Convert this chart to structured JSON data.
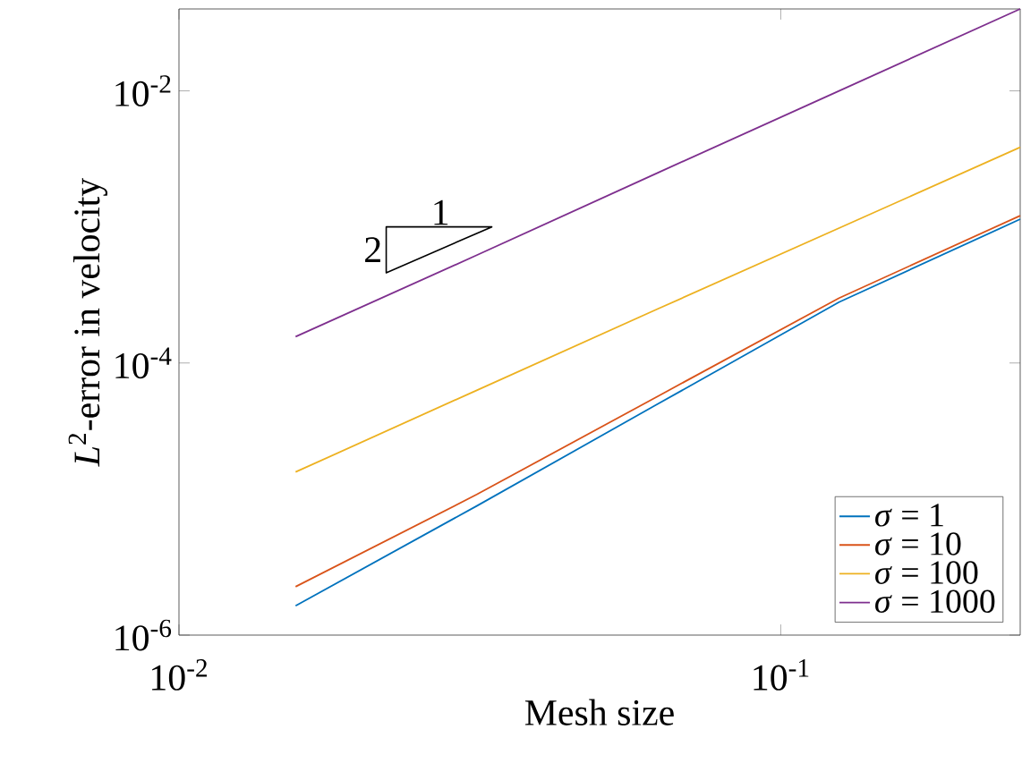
{
  "chart_data": {
    "type": "line",
    "xlabel": "Mesh size",
    "ylabel": "*L*$^{2}$-error in velocity",
    "x": [
      0.015625,
      0.03125,
      0.0625,
      0.125,
      0.25
    ],
    "series": [
      {
        "name": "*σ* = 1",
        "color": "#0072bd",
        "values": [
          1.64e-06,
          8.9e-06,
          5e-05,
          0.00028,
          0.00114
        ]
      },
      {
        "name": "*σ* = 10",
        "color": "#d95319",
        "values": [
          2.27e-06,
          1.08e-05,
          5.7e-05,
          0.0003,
          0.00121
        ]
      },
      {
        "name": "*σ* = 100",
        "color": "#edb120",
        "values": [
          1.58e-05,
          6.3e-05,
          0.00025,
          0.00098,
          0.00385
        ]
      },
      {
        "name": "*σ* = 1000",
        "color": "#7e2f8e",
        "values": [
          0.000156,
          0.00062,
          0.0025,
          0.01,
          0.04
        ]
      }
    ],
    "log": "xy",
    "xlim": [
      0.01,
      0.25
    ],
    "ylim": [
      1e-06,
      0.04
    ],
    "xticks": [
      {
        "value": 0.01,
        "label": "10$^{-2}$"
      },
      {
        "value": 0.1,
        "label": "10$^{-1}$"
      }
    ],
    "yticks": [
      {
        "value": 1e-06,
        "label": "10$^{-6}$"
      },
      {
        "value": 0.0001,
        "label": "10$^{-4}$"
      },
      {
        "value": 0.01,
        "label": "10$^{-2}$"
      }
    ],
    "grid": false,
    "legend": "bottom right",
    "marker": "none",
    "line_style": "solid",
    "annotations": [
      "1",
      "2"
    ]
  }
}
